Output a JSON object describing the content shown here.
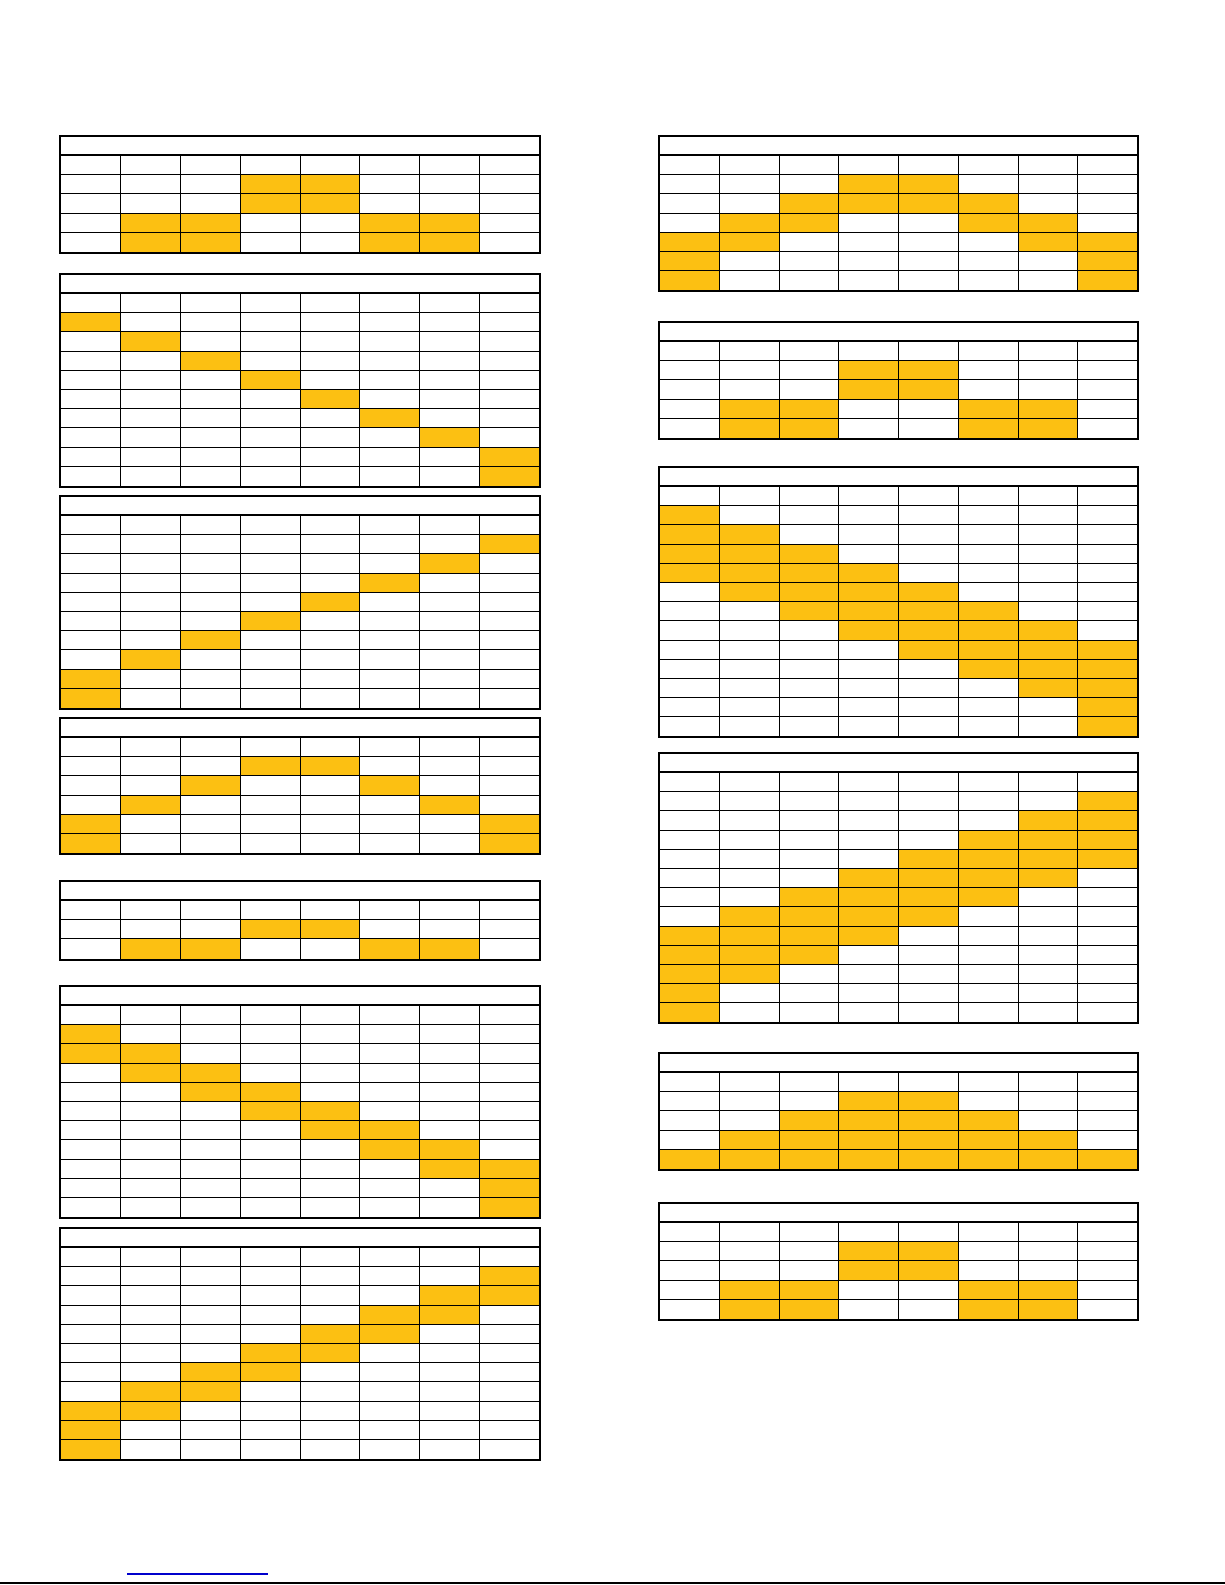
{
  "fill_color": "#FCC012",
  "columns": [
    {
      "grids": [
        {
          "rows": [
            "00000000",
            "00011000",
            "00011000",
            "01100110",
            "01100110"
          ]
        },
        {
          "rows": [
            "00000000",
            "10000000",
            "01000000",
            "00100000",
            "00010000",
            "00001000",
            "00000100",
            "00000010",
            "00000001",
            "00000001"
          ]
        },
        {
          "rows": [
            "00000000",
            "00000001",
            "00000010",
            "00000100",
            "00001000",
            "00010000",
            "00100000",
            "01000000",
            "10000000",
            "10000000"
          ]
        },
        {
          "rows": [
            "00000000",
            "00011000",
            "00100100",
            "01000010",
            "10000001",
            "10000001"
          ]
        },
        {
          "rows": [
            "00000000",
            "00011000",
            "01100110"
          ]
        },
        {
          "rows": [
            "00000000",
            "10000000",
            "11000000",
            "01100000",
            "00110000",
            "00011000",
            "00001100",
            "00000110",
            "00000011",
            "00000001",
            "00000001"
          ]
        },
        {
          "rows": [
            "00000000",
            "00000001",
            "00000011",
            "00000110",
            "00001100",
            "00011000",
            "00110000",
            "01100000",
            "11000000",
            "10000000",
            "10000000"
          ]
        }
      ]
    },
    {
      "grids": [
        {
          "rows": [
            "00000000",
            "00011000",
            "00111100",
            "01100110",
            "11000011",
            "10000001",
            "10000001"
          ]
        },
        {
          "rows": [
            "00000000",
            "00011000",
            "00011000",
            "01100110",
            "01100110"
          ]
        },
        {
          "rows": [
            "00000000",
            "10000000",
            "11000000",
            "11100000",
            "11110000",
            "01111000",
            "00111100",
            "00011110",
            "00001111",
            "00000111",
            "00000011",
            "00000001",
            "00000001"
          ]
        },
        {
          "rows": [
            "00000000",
            "00000001",
            "00000011",
            "00000111",
            "00001111",
            "00011110",
            "00111100",
            "01111000",
            "11110000",
            "11100000",
            "11000000",
            "10000000",
            "10000000"
          ]
        },
        {
          "rows": [
            "00000000",
            "00011000",
            "00111100",
            "01111110",
            "11111111"
          ]
        },
        {
          "rows": [
            "00000000",
            "00011000",
            "00011000",
            "01100110",
            "01100110"
          ]
        }
      ]
    }
  ]
}
